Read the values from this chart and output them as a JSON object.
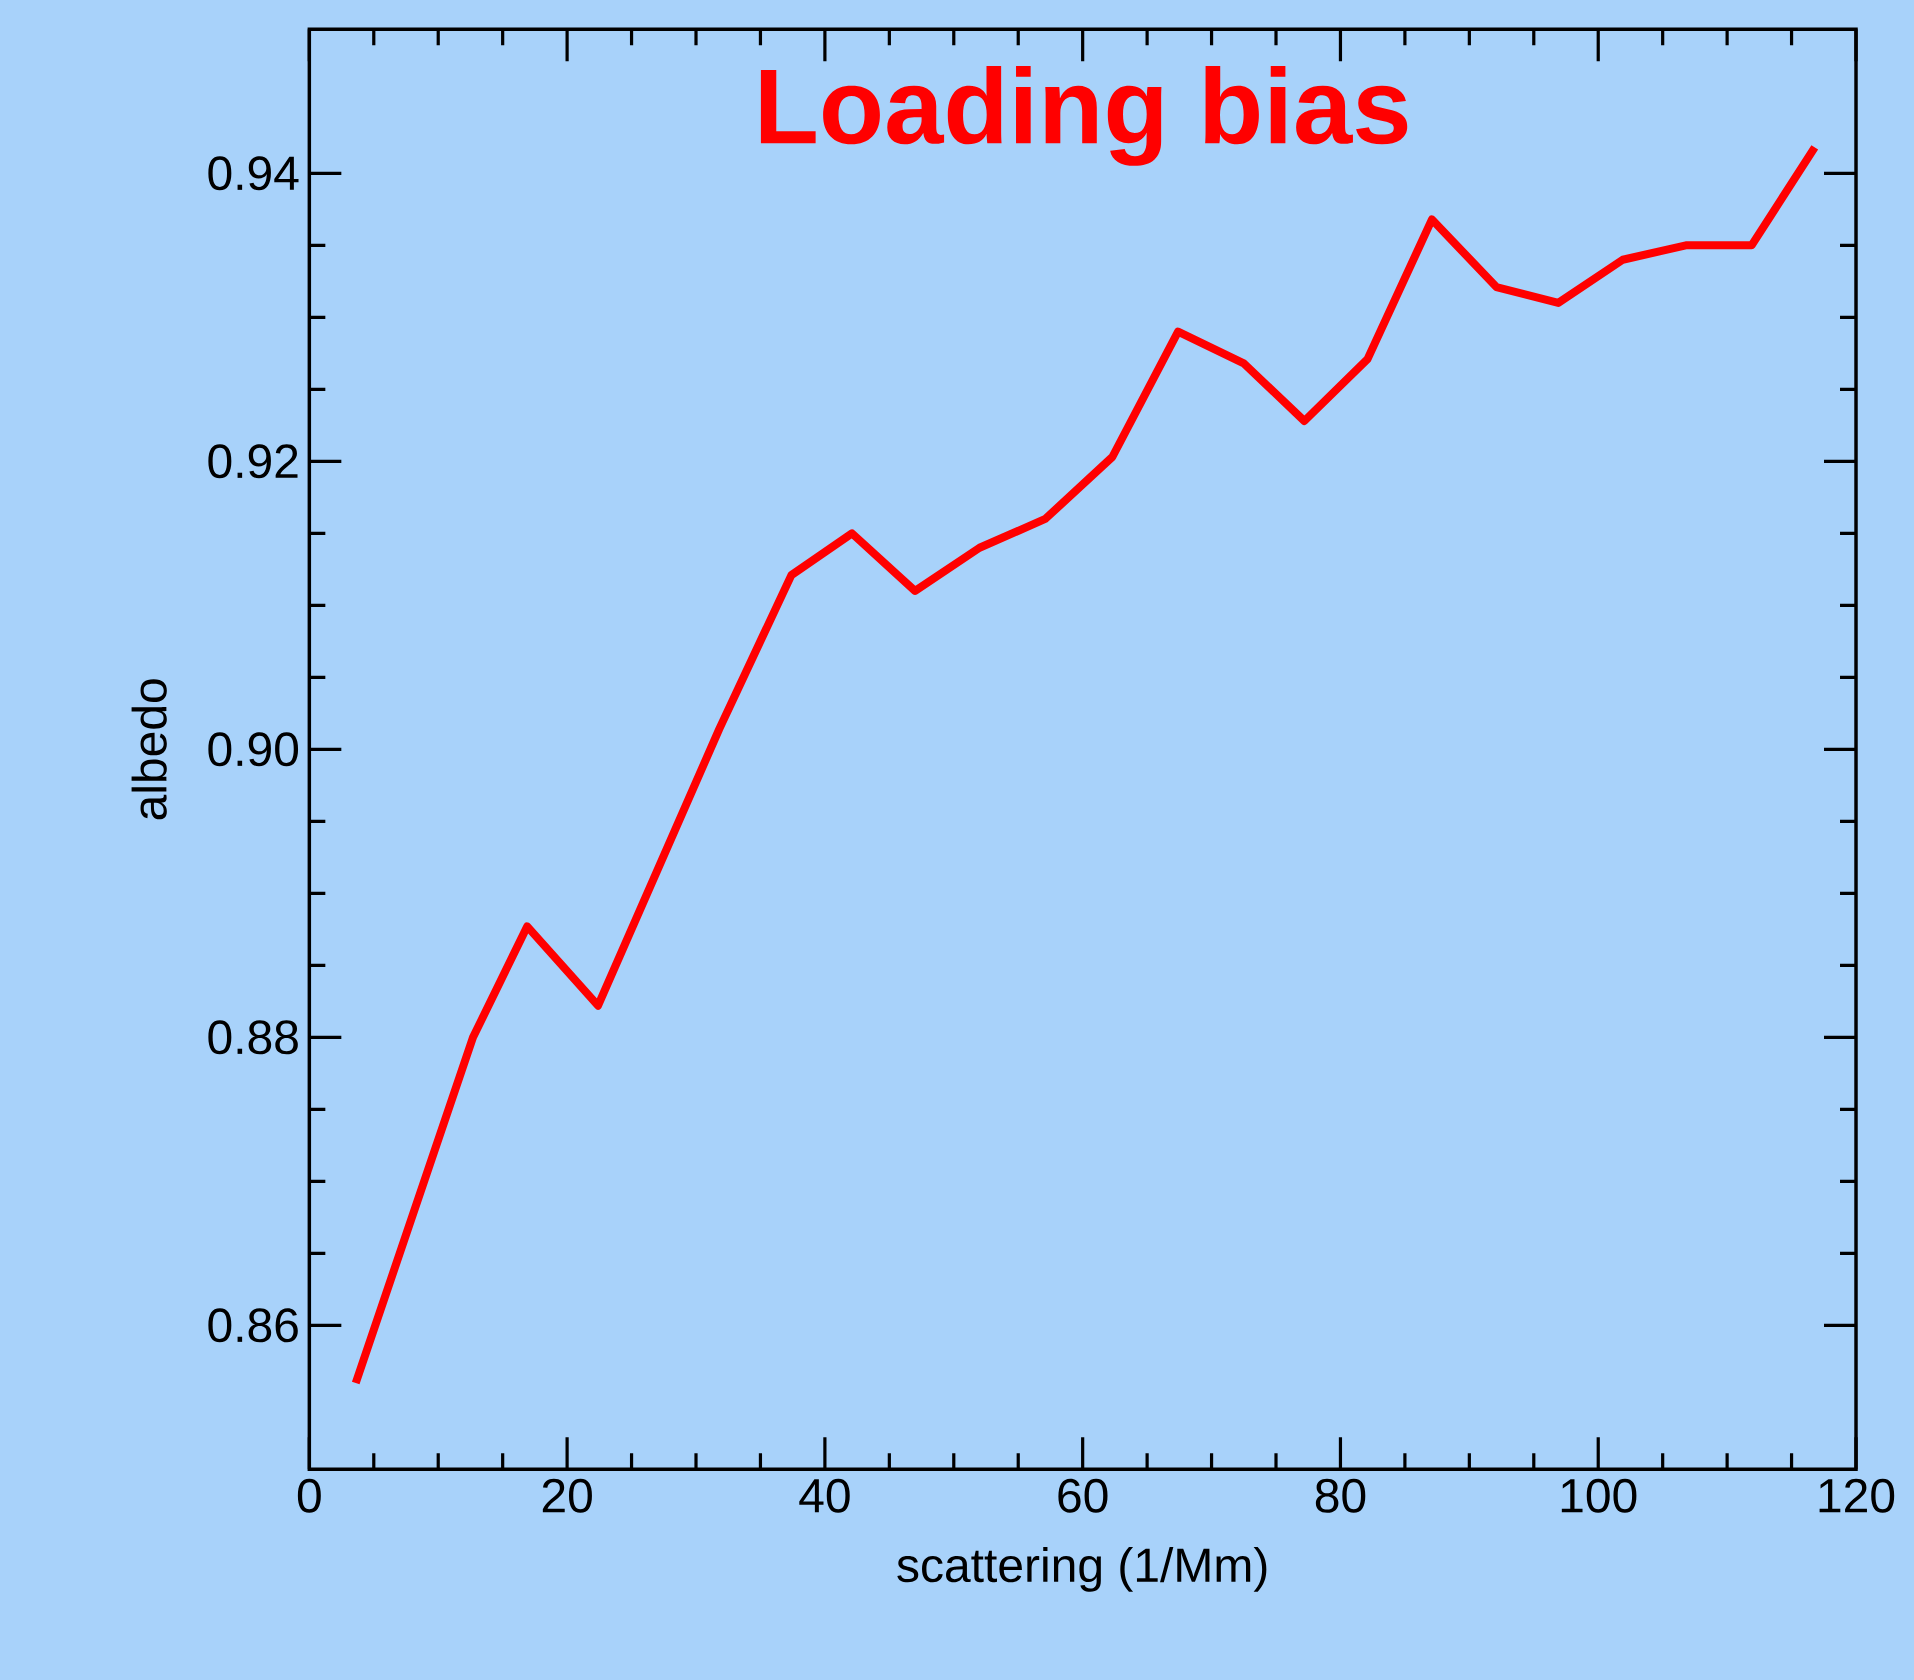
{
  "chart_data": {
    "type": "line",
    "title": "Loading bias",
    "xlabel": "scattering (1/Mm)",
    "ylabel": "albedo",
    "x": [
      3.6,
      12.7,
      16.9,
      22.4,
      31.8,
      37.4,
      42.1,
      47.0,
      52.0,
      57.1,
      62.3,
      67.4,
      72.5,
      77.2,
      82.1,
      87.1,
      92.1,
      96.9,
      101.9,
      106.8,
      111.9,
      116.8
    ],
    "series": [
      {
        "color": "#ff0000",
        "values": [
          0.856,
          0.88,
          0.8877,
          0.8822,
          0.9014,
          0.9121,
          0.915,
          0.911,
          0.914,
          0.916,
          0.9203,
          0.929,
          0.9268,
          0.9228,
          0.9271,
          0.9368,
          0.9321,
          0.931,
          0.934,
          0.935,
          0.935,
          0.9418
        ]
      }
    ],
    "xlim": [
      0,
      120
    ],
    "ylim": [
      0.85,
      0.95
    ],
    "xticks": [
      0,
      20,
      40,
      60,
      80,
      100,
      120
    ],
    "yticks": [
      {
        "value": 0.86,
        "label": "0.86"
      },
      {
        "value": 0.88,
        "label": "0.88"
      },
      {
        "value": 0.9,
        "label": "0.90"
      },
      {
        "value": 0.92,
        "label": "0.92"
      },
      {
        "value": 0.94,
        "label": "0.94"
      }
    ],
    "grid": false,
    "marker": "none",
    "line_style": "solid"
  }
}
